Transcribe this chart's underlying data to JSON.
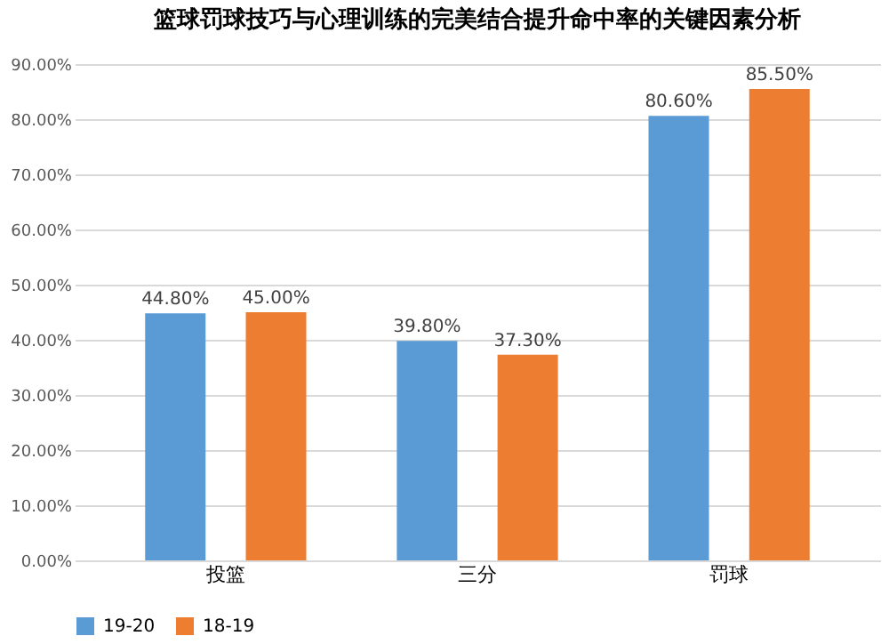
{
  "chart_data": {
    "type": "bar",
    "title": "篮球罚球技巧与心理训练的完美结合提升命中率的关键因素分析",
    "categories": [
      "投篮",
      "三分",
      "罚球"
    ],
    "series": [
      {
        "name": "19-20",
        "color": "#5b9bd5",
        "values": [
          44.8,
          39.8,
          80.6
        ],
        "value_labels": [
          "44.80%",
          "39.80%",
          "80.60%"
        ]
      },
      {
        "name": "18-19",
        "color": "#ed7d31",
        "values": [
          45.0,
          37.3,
          85.5
        ],
        "value_labels": [
          "45.00%",
          "37.30%",
          "85.50%"
        ]
      }
    ],
    "ylim": [
      0,
      90
    ],
    "yticks": [
      {
        "value": 0,
        "label": "0.00%"
      },
      {
        "value": 10,
        "label": "10.00%"
      },
      {
        "value": 20,
        "label": "20.00%"
      },
      {
        "value": 30,
        "label": "30.00%"
      },
      {
        "value": 40,
        "label": "40.00%"
      },
      {
        "value": 50,
        "label": "50.00%"
      },
      {
        "value": 60,
        "label": "60.00%"
      },
      {
        "value": 70,
        "label": "70.00%"
      },
      {
        "value": 80,
        "label": "80.00%"
      },
      {
        "value": 90,
        "label": "90.00%"
      }
    ],
    "grid": "y",
    "legend": "bottom"
  }
}
